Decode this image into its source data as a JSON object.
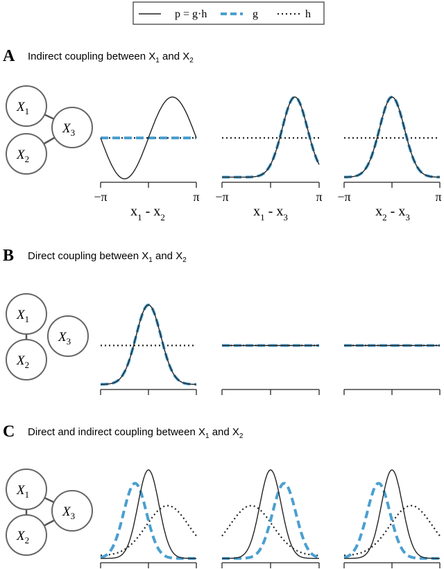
{
  "legend": {
    "items": [
      {
        "label": "p = g·h",
        "style": "solid",
        "color": "#222222"
      },
      {
        "label": "g",
        "style": "dashed",
        "color": "#4a9fd0"
      },
      {
        "label": "h",
        "style": "dotted",
        "color": "#222222"
      }
    ]
  },
  "panels": [
    {
      "letter": "A",
      "title": "Indirect coupling between X₁ and X₂",
      "title_main": "Indirect coupling between X",
      "title_sub1": "1",
      "title_and": " and X",
      "title_sub2": "2",
      "graph": {
        "nodes": [
          {
            "name": "X",
            "sub": "1"
          },
          {
            "name": "X",
            "sub": "2"
          },
          {
            "name": "X",
            "sub": "3"
          }
        ],
        "edges": [
          [
            "X1",
            "X3"
          ],
          [
            "X2",
            "X3"
          ]
        ]
      },
      "plots": [
        {
          "xlabel": "x₁ - x₂",
          "xlabel_main": "x",
          "xlabel_sub1": "1",
          "xlabel_mid": " - x",
          "xlabel_sub2": "2",
          "tick_left": "−π",
          "tick_right": "π",
          "p": "sine",
          "g": "flat",
          "h": "flat"
        },
        {
          "xlabel": "x₁ - x₃",
          "xlabel_main": "x",
          "xlabel_sub1": "1",
          "xlabel_mid": " - x",
          "xlabel_sub2": "3",
          "tick_left": "−π",
          "tick_right": "π",
          "p": "peak_right",
          "g": "peak_right",
          "h": "flat"
        },
        {
          "xlabel": "x₂ - x₃",
          "xlabel_main": "x",
          "xlabel_sub1": "2",
          "xlabel_mid": " - x",
          "xlabel_sub2": "3",
          "tick_left": "−π",
          "tick_right": "π",
          "p": "peak_center",
          "g": "peak_center",
          "h": "flat"
        }
      ]
    },
    {
      "letter": "B",
      "title_main": "Direct coupling between X",
      "title_sub1": "1",
      "title_and": " and X",
      "title_sub2": "2",
      "graph": {
        "nodes": [
          {
            "name": "X",
            "sub": "1"
          },
          {
            "name": "X",
            "sub": "2"
          },
          {
            "name": "X",
            "sub": "3"
          }
        ],
        "edges": [
          [
            "X1",
            "X2"
          ]
        ]
      },
      "plots": [
        {
          "p": "peak_center",
          "g": "peak_center",
          "h": "flat"
        },
        {
          "p": "flat",
          "g": "flat",
          "h": "flat"
        },
        {
          "p": "flat",
          "g": "flat",
          "h": "flat"
        }
      ]
    },
    {
      "letter": "C",
      "title_main": "Direct and indirect coupling between X",
      "title_sub1": "1",
      "title_and": " and X",
      "title_sub2": "2",
      "graph": {
        "nodes": [
          {
            "name": "X",
            "sub": "1"
          },
          {
            "name": "X",
            "sub": "2"
          },
          {
            "name": "X",
            "sub": "3"
          }
        ],
        "edges": [
          [
            "X1",
            "X2"
          ],
          [
            "X1",
            "X3"
          ],
          [
            "X2",
            "X3"
          ]
        ]
      },
      "plots": [
        {
          "p": "narrow_center",
          "g": "peak_left",
          "h": "broad_right"
        },
        {
          "p": "narrow_center",
          "g": "peak_right2",
          "h": "broad_left"
        },
        {
          "p": "narrow_center",
          "g": "peak_left",
          "h": "broad_right"
        }
      ]
    }
  ],
  "colors": {
    "g": "#4a9fd0",
    "p": "#222222",
    "h": "#222222",
    "node_stroke": "#666666"
  }
}
